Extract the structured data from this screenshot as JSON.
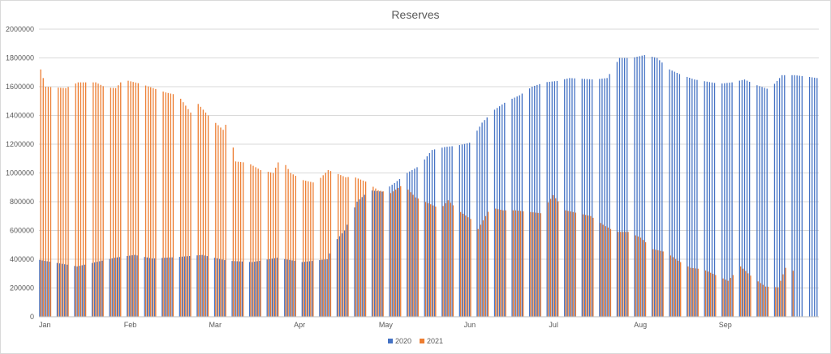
{
  "chart_data": {
    "type": "bar",
    "title": "Reserves",
    "xlabel": "",
    "ylabel": "",
    "x_axis": "daily, one bar per business day per year",
    "x_tick_labels": [
      "Jan",
      "Feb",
      "Mar",
      "Apr",
      "May",
      "Jun",
      "Jul",
      "Aug",
      "Sep"
    ],
    "y_ticks": [
      "0",
      "200000",
      "400000",
      "600000",
      "800000",
      "1000000",
      "1200000",
      "1400000",
      "1600000",
      "1800000",
      "2000000"
    ],
    "ylim": [
      0,
      2000000
    ],
    "grid": true,
    "legend_position": "bottom",
    "series": [
      {
        "name": "2020",
        "color": "#4472C4",
        "anchors": [
          [
            0,
            395000
          ],
          [
            15,
            350000
          ],
          [
            30,
            410000
          ],
          [
            38,
            430000
          ],
          [
            45,
            405000
          ],
          [
            55,
            415000
          ],
          [
            65,
            430000
          ],
          [
            75,
            390000
          ],
          [
            85,
            380000
          ],
          [
            95,
            410000
          ],
          [
            105,
            380000
          ],
          [
            115,
            400000
          ],
          [
            118,
            520000
          ],
          [
            122,
            600000
          ],
          [
            127,
            800000
          ],
          [
            132,
            880000
          ],
          [
            137,
            870000
          ],
          [
            142,
            930000
          ],
          [
            147,
            1000000
          ],
          [
            152,
            1050000
          ],
          [
            157,
            1160000
          ],
          [
            162,
            1180000
          ],
          [
            167,
            1190000
          ],
          [
            172,
            1210000
          ],
          [
            177,
            1350000
          ],
          [
            182,
            1440000
          ],
          [
            187,
            1500000
          ],
          [
            192,
            1540000
          ],
          [
            197,
            1600000
          ],
          [
            202,
            1630000
          ],
          [
            207,
            1640000
          ],
          [
            212,
            1660000
          ],
          [
            217,
            1655000
          ],
          [
            222,
            1650000
          ],
          [
            227,
            1660000
          ],
          [
            232,
            1800000
          ],
          [
            237,
            1800000
          ],
          [
            242,
            1820000
          ],
          [
            247,
            1800000
          ],
          [
            252,
            1720000
          ],
          [
            257,
            1680000
          ],
          [
            262,
            1650000
          ],
          [
            267,
            1635000
          ],
          [
            272,
            1620000
          ],
          [
            277,
            1630000
          ],
          [
            282,
            1650000
          ],
          [
            287,
            1610000
          ],
          [
            292,
            1580000
          ],
          [
            297,
            1680000
          ],
          [
            302,
            1680000
          ],
          [
            307,
            1670000
          ],
          [
            311,
            1660000
          ]
        ]
      },
      {
        "name": "2021",
        "color": "#ED7D31",
        "anchors": [
          [
            0,
            1720000
          ],
          [
            2,
            1600000
          ],
          [
            10,
            1590000
          ],
          [
            15,
            1630000
          ],
          [
            22,
            1630000
          ],
          [
            26,
            1595000
          ],
          [
            30,
            1590000
          ],
          [
            33,
            1650000
          ],
          [
            40,
            1620000
          ],
          [
            45,
            1590000
          ],
          [
            50,
            1560000
          ],
          [
            55,
            1540000
          ],
          [
            60,
            1420000
          ],
          [
            63,
            1480000
          ],
          [
            68,
            1380000
          ],
          [
            73,
            1300000
          ],
          [
            75,
            1370000
          ],
          [
            78,
            1080000
          ],
          [
            83,
            1070000
          ],
          [
            88,
            1020000
          ],
          [
            93,
            1000000
          ],
          [
            96,
            1110000
          ],
          [
            100,
            1000000
          ],
          [
            105,
            950000
          ],
          [
            110,
            930000
          ],
          [
            115,
            1020000
          ],
          [
            118,
            1000000
          ],
          [
            122,
            970000
          ],
          [
            125,
            975000
          ],
          [
            130,
            940000
          ],
          [
            135,
            880000
          ],
          [
            140,
            860000
          ],
          [
            145,
            920000
          ],
          [
            150,
            830000
          ],
          [
            155,
            790000
          ],
          [
            160,
            750000
          ],
          [
            163,
            810000
          ],
          [
            167,
            740000
          ],
          [
            172,
            680000
          ],
          [
            175,
            610000
          ],
          [
            180,
            760000
          ],
          [
            185,
            740000
          ],
          [
            190,
            740000
          ],
          [
            195,
            730000
          ],
          [
            200,
            720000
          ],
          [
            205,
            845000
          ],
          [
            210,
            740000
          ],
          [
            215,
            720000
          ],
          [
            220,
            700000
          ],
          [
            225,
            640000
          ],
          [
            230,
            590000
          ],
          [
            235,
            590000
          ],
          [
            240,
            550000
          ],
          [
            245,
            470000
          ],
          [
            250,
            450000
          ],
          [
            255,
            390000
          ],
          [
            260,
            340000
          ],
          [
            265,
            330000
          ],
          [
            270,
            290000
          ],
          [
            275,
            250000
          ],
          [
            280,
            350000
          ],
          [
            285,
            270000
          ],
          [
            290,
            210000
          ],
          [
            295,
            205000
          ],
          [
            298,
            340000
          ],
          [
            301,
            320000
          ]
        ]
      }
    ]
  }
}
